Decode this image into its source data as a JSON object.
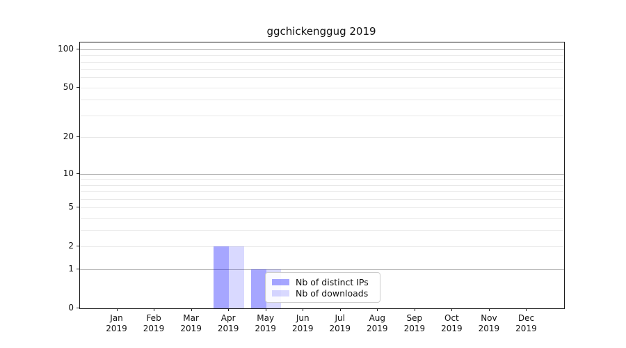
{
  "chart_data": {
    "type": "bar",
    "title": "ggchickenggug 2019",
    "categories": [
      "Jan",
      "Feb",
      "Mar",
      "Apr",
      "May",
      "Jun",
      "Jul",
      "Aug",
      "Sep",
      "Oct",
      "Nov",
      "Dec"
    ],
    "category_year": "2019",
    "series": [
      {
        "name": "Nb of distinct IPs",
        "color": "rgba(0,0,255,0.35)",
        "values": [
          0,
          0,
          0,
          2,
          1,
          0,
          0,
          0,
          0,
          0,
          0,
          0
        ]
      },
      {
        "name": "Nb of downloads",
        "color": "rgba(0,0,255,0.15)",
        "values": [
          0,
          0,
          0,
          2,
          1,
          0,
          0,
          0,
          0,
          0,
          0,
          0
        ]
      }
    ],
    "yticks": [
      0,
      1,
      2,
      5,
      10,
      20,
      50,
      100
    ],
    "major_gridlines": [
      1,
      10,
      100
    ],
    "minor_gridlines": [
      2,
      3,
      4,
      5,
      6,
      7,
      8,
      9,
      20,
      30,
      40,
      50,
      60,
      70,
      80,
      90
    ],
    "yscale": "log1p",
    "ylim": [
      0,
      113
    ],
    "xlabel": "",
    "ylabel": "",
    "grid": true,
    "legend_position": "lower-right-inside",
    "style": {
      "major_grid_color": "#b0b0b0",
      "minor_grid_color": "#e8e8e8",
      "spine_color": "#1a1a1a",
      "background": "#ffffff"
    }
  }
}
